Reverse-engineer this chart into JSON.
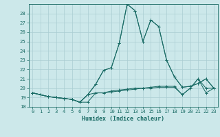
{
  "xlabel": "Humidex (Indice chaleur)",
  "background_color": "#cce8ea",
  "grid_color": "#aacdd2",
  "line_color": "#1a6b65",
  "xlim": [
    -0.5,
    23.5
  ],
  "ylim": [
    18,
    29
  ],
  "yticks": [
    18,
    19,
    20,
    21,
    22,
    23,
    24,
    25,
    26,
    27,
    28
  ],
  "xticks": [
    0,
    1,
    2,
    3,
    4,
    5,
    6,
    7,
    8,
    9,
    10,
    11,
    12,
    13,
    14,
    15,
    16,
    17,
    18,
    19,
    20,
    21,
    22,
    23
  ],
  "s1": [
    19.5,
    19.3,
    19.1,
    19.0,
    18.9,
    18.8,
    18.5,
    18.5,
    19.5,
    19.5,
    19.6,
    19.7,
    19.8,
    19.9,
    20.0,
    20.0,
    20.1,
    20.1,
    20.1,
    19.3,
    20.0,
    21.0,
    20.0,
    20.0
  ],
  "s2": [
    19.5,
    19.3,
    19.1,
    19.0,
    18.9,
    18.8,
    18.5,
    19.3,
    19.5,
    19.5,
    19.7,
    19.8,
    19.9,
    20.0,
    20.0,
    20.1,
    20.2,
    20.2,
    20.2,
    19.3,
    20.0,
    21.0,
    19.5,
    20.0
  ],
  "s3": [
    19.5,
    19.3,
    19.1,
    19.0,
    18.9,
    18.8,
    18.5,
    19.3,
    20.4,
    21.9,
    22.2,
    24.8,
    29.0,
    28.3,
    25.0,
    27.3,
    26.6,
    23.0,
    21.2,
    20.1,
    20.2,
    20.5,
    21.0,
    20.0
  ],
  "s4": [
    19.5,
    19.3,
    19.1,
    19.0,
    18.9,
    18.8,
    18.5,
    19.3,
    20.4,
    21.9,
    22.2,
    24.8,
    29.0,
    28.3,
    25.0,
    27.3,
    26.6,
    23.0,
    21.2,
    20.1,
    20.2,
    20.5,
    21.0,
    20.0
  ],
  "axis_fontsize": 6.0,
  "tick_fontsize": 5.2
}
